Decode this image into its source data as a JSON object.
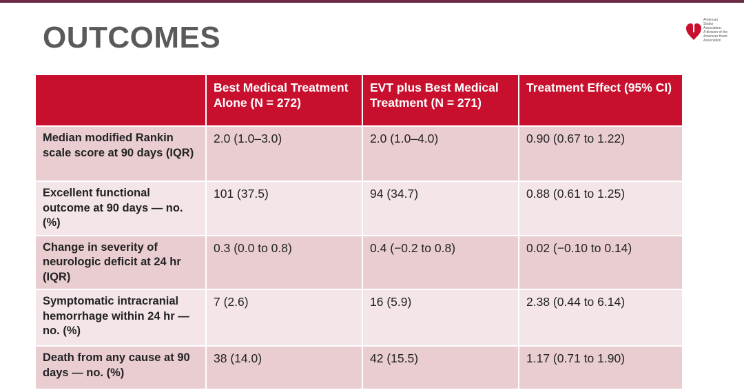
{
  "slide": {
    "title": "OUTCOMES",
    "brand_color": "#c8102e"
  },
  "logo": {
    "icon": "heart-torch-icon",
    "lines": [
      "American",
      "Stroke",
      "Association.",
      "A division of the",
      "American Heart Association"
    ]
  },
  "table": {
    "headers": [
      "",
      "Best Medical Treatment Alone (N = 272)",
      "EVT plus Best Medical Treatment (N = 271)",
      "Treatment Effect (95% CI)"
    ],
    "rows": [
      [
        "Median modified Rankin scale score at 90 days (IQR)",
        "2.0 (1.0–3.0)",
        "2.0 (1.0–4.0)",
        "0.90 (0.67 to 1.22)"
      ],
      [
        "Excellent functional outcome at 90 days — no. (%)",
        "101 (37.5)",
        "94 (34.7)",
        "0.88 (0.61 to 1.25)"
      ],
      [
        "Change in severity of neurologic deficit at 24 hr (IQR)",
        "0.3 (0.0 to 0.8)",
        "0.4 (−0.2 to 0.8)",
        "0.02 (−0.10 to 0.14)"
      ],
      [
        "Symptomatic intracranial hemorrhage within 24 hr — no. (%)",
        "7 (2.6)",
        "16 (5.9)",
        "2.38 (0.44 to 6.14)"
      ],
      [
        "Death from any cause at 90 days — no. (%)",
        "38 (14.0)",
        "42 (15.5)",
        "1.17 (0.71 to 1.90)"
      ]
    ]
  }
}
